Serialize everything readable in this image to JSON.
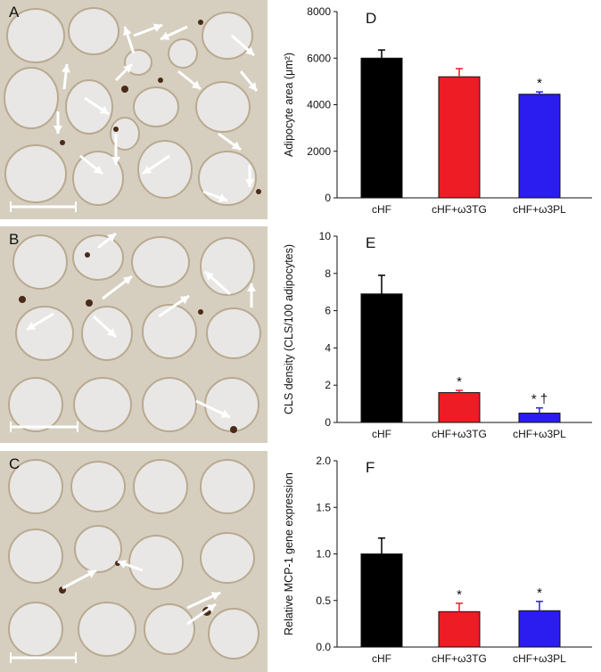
{
  "micrographs": [
    {
      "letter": "A",
      "arrows": [
        [
          72,
          100,
          75,
          72
        ],
        [
          150,
          40,
          182,
          28
        ],
        [
          150,
          60,
          140,
          30
        ],
        [
          210,
          30,
          180,
          44
        ],
        [
          260,
          40,
          285,
          62
        ],
        [
          270,
          80,
          288,
          102
        ],
        [
          200,
          80,
          225,
          100
        ],
        [
          130,
          90,
          148,
          72
        ],
        [
          95,
          110,
          122,
          128
        ],
        [
          65,
          125,
          65,
          150
        ],
        [
          90,
          175,
          115,
          195
        ],
        [
          130,
          150,
          130,
          185
        ],
        [
          190,
          175,
          160,
          195
        ],
        [
          245,
          150,
          270,
          168
        ],
        [
          280,
          185,
          280,
          210
        ],
        [
          228,
          215,
          255,
          225
        ]
      ]
    },
    {
      "letter": "B",
      "arrows": [
        [
          110,
          278,
          130,
          262
        ],
        [
          115,
          335,
          148,
          310
        ],
        [
          105,
          355,
          130,
          378
        ],
        [
          60,
          352,
          30,
          370
        ],
        [
          178,
          355,
          212,
          332
        ],
        [
          258,
          330,
          230,
          305
        ],
        [
          282,
          345,
          282,
          318
        ],
        [
          220,
          450,
          258,
          468
        ]
      ]
    },
    {
      "letter": "C",
      "arrows": [
        [
          160,
          640,
          132,
          630
        ],
        [
          70,
          660,
          108,
          640
        ],
        [
          210,
          700,
          242,
          678
        ],
        [
          210,
          682,
          247,
          665
        ]
      ]
    }
  ],
  "charts": [
    {
      "panel": "D",
      "type": "bar",
      "categories": [
        "cHF",
        "cHF+ω3TG",
        "cHF+ω3PL"
      ],
      "values": [
        6000,
        5200,
        4450
      ],
      "errors": [
        350,
        350,
        100
      ],
      "colors": [
        "#000000",
        "#ee1c25",
        "#2b1cf0"
      ],
      "ylabel": "Adipocyte area (μm²)",
      "ylim": [
        0,
        8000
      ],
      "yticks": [
        "0",
        "2000",
        "4000",
        "6000",
        "8000"
      ],
      "markers": [
        "",
        "",
        "*"
      ]
    },
    {
      "panel": "E",
      "type": "bar",
      "categories": [
        "cHF",
        "cHF+ω3TG",
        "cHF+ω3PL"
      ],
      "values": [
        6.9,
        1.6,
        0.5
      ],
      "errors": [
        1.0,
        0.12,
        0.28
      ],
      "colors": [
        "#000000",
        "#ee1c25",
        "#2b1cf0"
      ],
      "ylabel": "CLS density (CLS/100 adipocytes)",
      "ylim": [
        0,
        10
      ],
      "yticks": [
        "0",
        "2",
        "4",
        "6",
        "8",
        "10"
      ],
      "markers": [
        "",
        "*",
        "* †"
      ]
    },
    {
      "panel": "F",
      "type": "bar",
      "categories": [
        "cHF",
        "cHF+ω3TG",
        "cHF+ω3PL"
      ],
      "values": [
        1.0,
        0.38,
        0.39
      ],
      "errors": [
        0.17,
        0.09,
        0.1
      ],
      "colors": [
        "#000000",
        "#ee1c25",
        "#2b1cf0"
      ],
      "ylabel": "Relative MCP-1 gene expression",
      "ylim": [
        0,
        2.0
      ],
      "yticks": [
        "0.0",
        "0.5",
        "1.0",
        "1.5",
        "2.0"
      ],
      "markers": [
        "",
        "*",
        "*"
      ]
    }
  ]
}
